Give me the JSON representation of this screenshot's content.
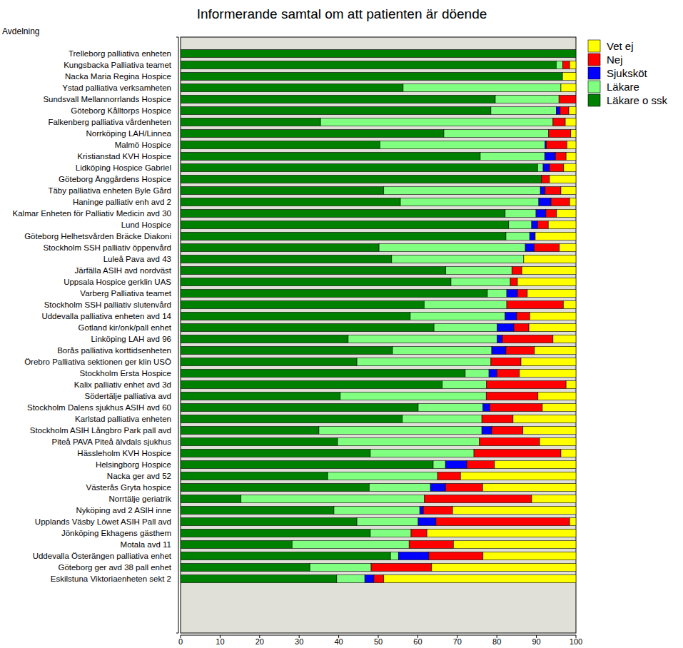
{
  "chart_data": {
    "type": "bar",
    "orientation": "horizontal",
    "stacked": true,
    "title": "Informerande samtal om att patienten är döende",
    "y_label": "Avdelning",
    "legend": "right",
    "grid": false,
    "xlim": [
      0,
      100
    ],
    "xticks": [
      0,
      10,
      20,
      30,
      40,
      50,
      60,
      70,
      80,
      90,
      100
    ],
    "categories": [
      "Trelleborg palliativa enheten",
      "Kungsbacka Palliativa teamet",
      "Nacka Maria Regina Hospice",
      "Ystad palliativa verksamheten",
      "Sundsvall Mellannorrlands Hospice",
      "Göteborg Kålltorps Hospice",
      "Falkenberg palliativa vårdenheten",
      "Norrköping LAH/Linnea",
      "Malmö Hospice",
      "Kristianstad KVH Hospice",
      "Lidköping Hospice Gabriel",
      "Göteborg Änggårdens Hospice",
      "Täby palliativa enheten Byle Gård",
      "Haninge palliativ enh avd 2",
      "Kalmar Enheten för Palliativ Medicin avd 30",
      "Lund Hospice",
      "Göteborg Helhetsvården Bräcke Diakoni",
      "Stockholm SSH palliativ öppenvård",
      "Luleå Pava avd 43",
      "Järfälla ASIH avd nordväst",
      "Uppsala Hospice gerklin UAS",
      "Varberg Palliativa teamet",
      "Stockholm SSH palliativ slutenvård",
      "Uddevalla palliativa enheten avd 14",
      "Gotland kir/onk/pall enhet",
      "Linköping LAH avd 96",
      "Borås palliativa korttidsenheten",
      "Örebro Palliativa sektionen ger klin USÖ",
      "Stockholm Ersta Hospice",
      "Kalix palliativ enhet avd 3d",
      "Södertälje palliativa avd",
      "Stockholm Dalens sjukhus ASIH avd 60",
      "Karlstad palliativa enheten",
      "Stockholm ASIH Långbro Park pall avd",
      "Piteå PAVA Piteå älvdals sjukhus",
      "Hässleholm KVH Hospice",
      "Helsingborg Hospice",
      "Nacka ger avd 52",
      "Västerås Gryta hospice",
      "Norrtälje geriatrik",
      "Nyköping avd 2 ASIH inne",
      "Upplands Väsby Löwet ASIH Pall avd",
      "Jönköping Ekhagens gästhem",
      "Motala avd 11",
      "Uddevalla Österängen palliativa enhet",
      "Göteborg ger avd 38 pall enhet",
      "Eskilstuna Viktoriaenheten sekt 2"
    ],
    "series": [
      {
        "name": "Läkare o ssk",
        "color": "#008000",
        "values": [
          100,
          95,
          96.6,
          56.3,
          79.6,
          78.5,
          35.4,
          66.6,
          50.4,
          75.8,
          90.3,
          91.3,
          51.4,
          55.6,
          82.1,
          83,
          82.3,
          50.2,
          53.4,
          67.1,
          68.4,
          77.6,
          61.6,
          58.1,
          64.1,
          42.4,
          53.6,
          44.6,
          72,
          66.2,
          40.4,
          60.1,
          56.1,
          35,
          39.7,
          48,
          63.9,
          37.2,
          47.7,
          15.3,
          38.8,
          44.6,
          48,
          28.2,
          53.1,
          32.7,
          39.5
        ]
      },
      {
        "name": "Läkare",
        "color": "#80ff80",
        "values": [
          0,
          1.7,
          0,
          39.9,
          16.1,
          16.5,
          58.8,
          26.5,
          41.8,
          16.3,
          1.4,
          0,
          39.6,
          35,
          7.8,
          5.8,
          6,
          37,
          33.4,
          16.7,
          15,
          4.9,
          20.9,
          24,
          16,
          37.7,
          25.1,
          33.9,
          6,
          11.2,
          36.9,
          16.4,
          20.1,
          41.2,
          35.9,
          26.2,
          3.1,
          27.8,
          15.5,
          46.4,
          21.7,
          15.5,
          10.3,
          29.6,
          2,
          15.5,
          7.1
        ]
      },
      {
        "name": "Sjuksköt",
        "color": "#0000ff",
        "values": [
          0,
          0,
          0,
          0,
          0,
          1,
          0,
          0,
          0.3,
          2.7,
          1.6,
          0,
          1.2,
          3.1,
          2.5,
          1.5,
          1.4,
          2.2,
          0,
          0,
          0,
          2.7,
          0,
          2.9,
          4.2,
          1.3,
          3.6,
          0,
          2,
          0,
          0,
          1.7,
          0,
          2.5,
          0,
          0,
          5.4,
          0,
          3.8,
          0,
          0.9,
          4.5,
          0,
          0,
          7.7,
          0,
          2.3
        ]
      },
      {
        "name": "Nej",
        "color": "#ff0000",
        "values": [
          0,
          1.7,
          0,
          0,
          4.3,
          2.2,
          3.1,
          5.6,
          5.2,
          2.7,
          3.6,
          2,
          4,
          4.7,
          2.7,
          2.7,
          0,
          6.4,
          0,
          2.5,
          1.8,
          2.5,
          14.3,
          3.3,
          3.8,
          12.8,
          7.2,
          7.6,
          5.7,
          20.1,
          13.1,
          13.3,
          7.9,
          7.9,
          15.2,
          22,
          7,
          5.8,
          9.4,
          27.1,
          7.4,
          33.8,
          4,
          11.2,
          13.7,
          15.3,
          2.5
        ]
      },
      {
        "name": "Vet ej",
        "color": "#ffff00",
        "values": [
          0,
          1.6,
          3.4,
          3.8,
          0,
          1.8,
          2.7,
          1.3,
          2.3,
          2.5,
          3.1,
          6.7,
          3.8,
          1.6,
          4.9,
          7,
          10.3,
          4.2,
          13.2,
          13.7,
          14.8,
          12.3,
          3.2,
          11.7,
          11.9,
          5.8,
          10.5,
          13.9,
          14.3,
          2.5,
          9.6,
          8.5,
          15.9,
          13.4,
          9.2,
          3.8,
          20.6,
          29.2,
          23.6,
          11.2,
          31.2,
          1.6,
          37.7,
          31,
          23.5,
          36.5,
          48.6
        ]
      }
    ]
  }
}
